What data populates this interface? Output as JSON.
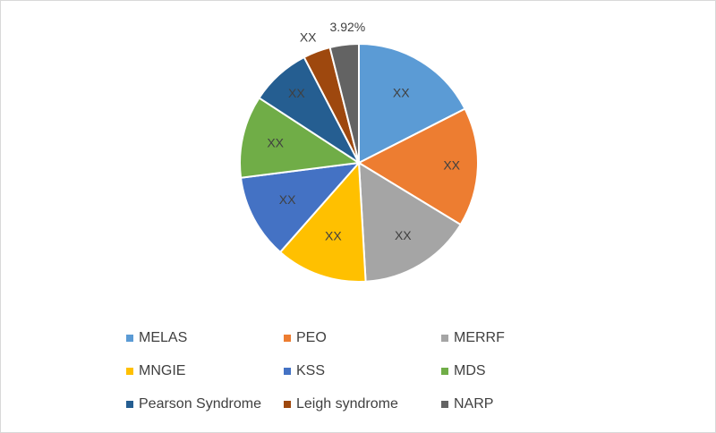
{
  "chart_data": {
    "type": "pie",
    "slices": [
      {
        "name": "MELAS",
        "value": 17.5,
        "label": "XX",
        "color": "#5b9bd5"
      },
      {
        "name": "PEO",
        "value": 16.2,
        "label": "XX",
        "color": "#ed7d31"
      },
      {
        "name": "MERRF",
        "value": 15.4,
        "label": "XX",
        "color": "#a5a5a5"
      },
      {
        "name": "MNGIE",
        "value": 12.4,
        "label": "XX",
        "color": "#ffc000"
      },
      {
        "name": "KSS",
        "value": 11.5,
        "label": "XX",
        "color": "#4472c4"
      },
      {
        "name": "MDS",
        "value": 11.2,
        "label": "XX",
        "color": "#70ad47"
      },
      {
        "name": "Pearson Syndrome",
        "value": 8.2,
        "label": "XX",
        "color": "#255e91"
      },
      {
        "name": "Leigh syndrome",
        "value": 3.7,
        "label": "XX",
        "color": "#9e480e"
      },
      {
        "name": "NARP",
        "value": 3.92,
        "label": "3.92%",
        "color": "#636363"
      }
    ],
    "legend_position": "bottom"
  }
}
